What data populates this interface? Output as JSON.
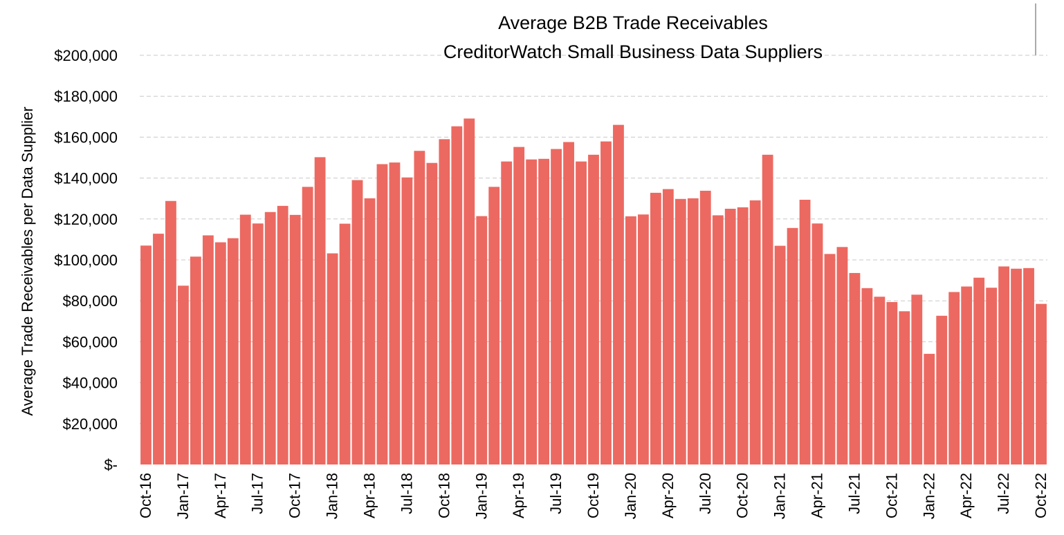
{
  "chart_data": {
    "type": "bar",
    "title": "Average B2B Trade Receivables",
    "subtitle": "CreditorWatch Small Business Data Suppliers",
    "xlabel": "",
    "ylabel": "Average Trade Receivables per Data Supplier",
    "ylim": [
      0,
      200000
    ],
    "grid": true,
    "bar_color": "#ec6961",
    "y_ticks": [
      {
        "value": 0,
        "label": "$-"
      },
      {
        "value": 20000,
        "label": "$20,000"
      },
      {
        "value": 40000,
        "label": "$40,000"
      },
      {
        "value": 60000,
        "label": "$60,000"
      },
      {
        "value": 80000,
        "label": "$80,000"
      },
      {
        "value": 100000,
        "label": "$100,000"
      },
      {
        "value": 120000,
        "label": "$120,000"
      },
      {
        "value": 140000,
        "label": "$140,000"
      },
      {
        "value": 160000,
        "label": "$160,000"
      },
      {
        "value": 180000,
        "label": "$180,000"
      },
      {
        "value": 200000,
        "label": "$200,000"
      }
    ],
    "x_tick_labels": [
      {
        "category": "Oct-16",
        "label": "Oct-16"
      },
      {
        "category": "Jan-17",
        "label": "Jan-17"
      },
      {
        "category": "Apr-17",
        "label": "Apr-17"
      },
      {
        "category": "Jul-17",
        "label": "Jul-17"
      },
      {
        "category": "Oct-17",
        "label": "Oct-17"
      },
      {
        "category": "Jan-18",
        "label": "Jan-18"
      },
      {
        "category": "Apr-18",
        "label": "Apr-18"
      },
      {
        "category": "Jul-18",
        "label": "Jul-18"
      },
      {
        "category": "Oct-18",
        "label": "Oct-18"
      },
      {
        "category": "Jan-19",
        "label": "Jan-19"
      },
      {
        "category": "Apr-19",
        "label": "Apr-19"
      },
      {
        "category": "Jul-19",
        "label": "Jul-19"
      },
      {
        "category": "Oct-19",
        "label": "Oct-19"
      },
      {
        "category": "Jan-20",
        "label": "Jan-20"
      },
      {
        "category": "Apr-20",
        "label": "Apr-20"
      },
      {
        "category": "Jul-20",
        "label": "Jul-20"
      },
      {
        "category": "Oct-20",
        "label": "Oct-20"
      },
      {
        "category": "Jan-21",
        "label": "Jan-21"
      },
      {
        "category": "Apr-21",
        "label": "Apr-21"
      },
      {
        "category": "Jul-21",
        "label": "Jul-21"
      },
      {
        "category": "Oct-21",
        "label": "Oct-21"
      },
      {
        "category": "Jan-22",
        "label": "Jan-22"
      },
      {
        "category": "Apr-22",
        "label": "Apr-22"
      },
      {
        "category": "Jul-22",
        "label": "Jul-22"
      },
      {
        "category": "Oct-22",
        "label": "Oct-22"
      }
    ],
    "categories": [
      "Oct-16",
      "Nov-16",
      "Dec-16",
      "Jan-17",
      "Feb-17",
      "Mar-17",
      "Apr-17",
      "May-17",
      "Jun-17",
      "Jul-17",
      "Aug-17",
      "Sep-17",
      "Oct-17",
      "Nov-17",
      "Dec-17",
      "Jan-18",
      "Feb-18",
      "Mar-18",
      "Apr-18",
      "May-18",
      "Jun-18",
      "Jul-18",
      "Aug-18",
      "Sep-18",
      "Oct-18",
      "Nov-18",
      "Dec-18",
      "Jan-19",
      "Feb-19",
      "Mar-19",
      "Apr-19",
      "May-19",
      "Jun-19",
      "Jul-19",
      "Aug-19",
      "Sep-19",
      "Oct-19",
      "Nov-19",
      "Dec-19",
      "Jan-20",
      "Feb-20",
      "Mar-20",
      "Apr-20",
      "May-20",
      "Jun-20",
      "Jul-20",
      "Aug-20",
      "Sep-20",
      "Oct-20",
      "Nov-20",
      "Dec-20",
      "Jan-21",
      "Feb-21",
      "Mar-21",
      "Apr-21",
      "May-21",
      "Jun-21",
      "Jul-21",
      "Aug-21",
      "Sep-21",
      "Oct-21",
      "Nov-21",
      "Dec-21",
      "Jan-22",
      "Feb-22",
      "Mar-22",
      "Apr-22",
      "May-22",
      "Jun-22",
      "Jul-22",
      "Aug-22",
      "Sep-22",
      "Oct-22"
    ],
    "values": [
      107000,
      112800,
      128800,
      87400,
      101600,
      112000,
      108600,
      110600,
      122100,
      117800,
      123400,
      126400,
      122000,
      135700,
      150200,
      103200,
      117700,
      139000,
      130100,
      146800,
      147600,
      140300,
      153300,
      147400,
      159000,
      165300,
      169100,
      121400,
      135700,
      148100,
      155200,
      149100,
      149400,
      154200,
      157600,
      148100,
      151400,
      157900,
      166000,
      121300,
      122200,
      132800,
      134600,
      129800,
      130100,
      133800,
      121800,
      125000,
      125700,
      129100,
      151400,
      106900,
      115600,
      129400,
      117800,
      102900,
      106300,
      93600,
      86200,
      82000,
      79400,
      74900,
      83000,
      54100,
      72700,
      84300,
      87000,
      91300,
      86400,
      96800,
      95700,
      96000,
      78500
    ]
  }
}
